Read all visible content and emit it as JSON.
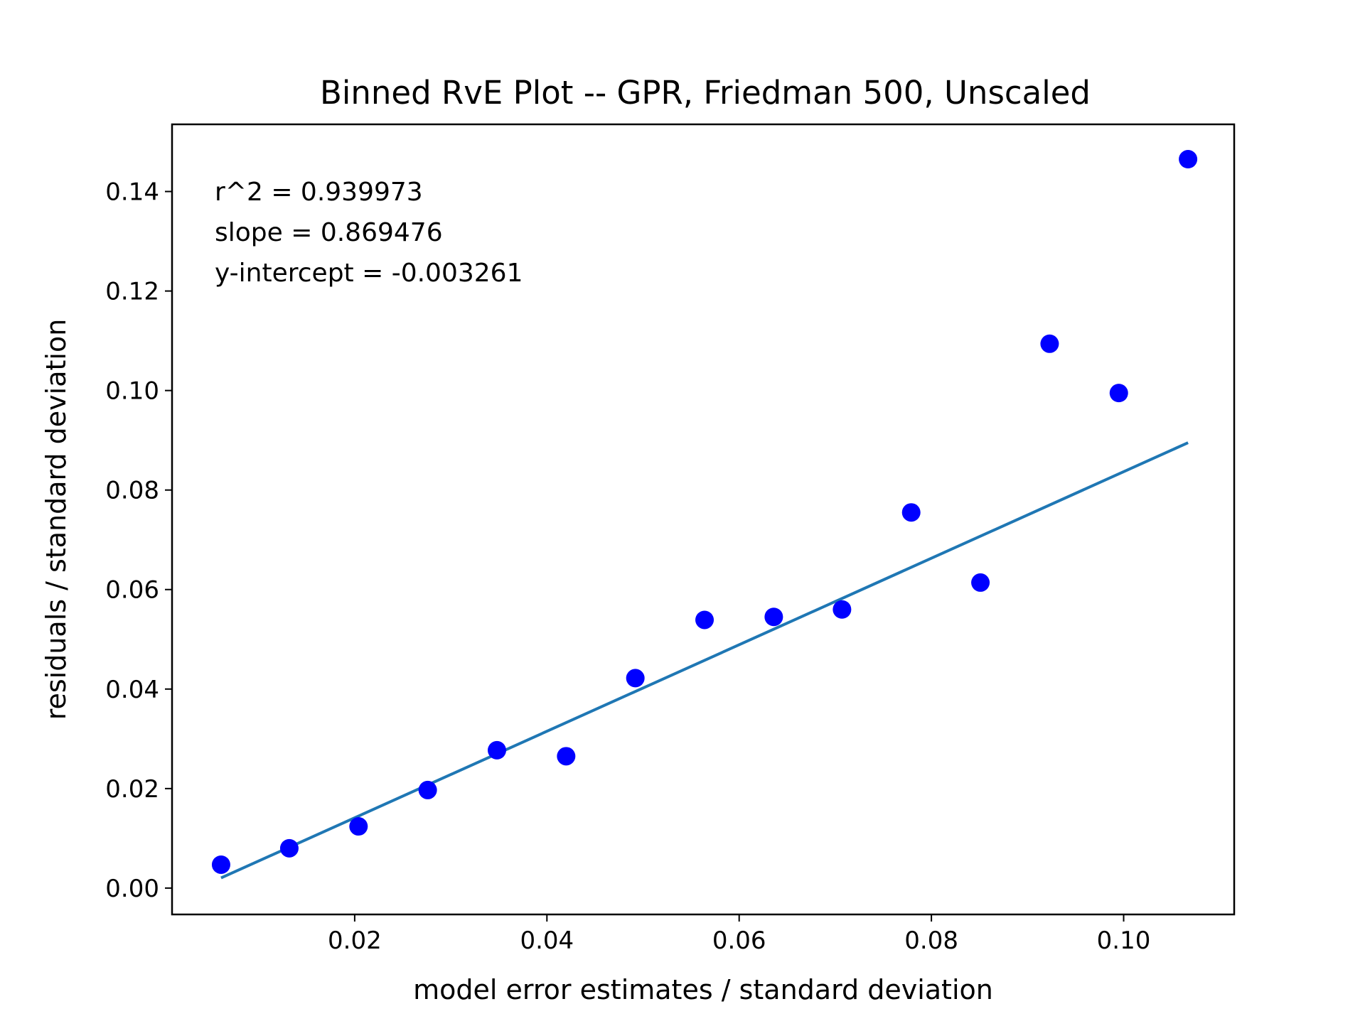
{
  "chart_data": {
    "type": "scatter",
    "title": "Binned RvE Plot -- GPR, Friedman 500, Unscaled",
    "xlabel": "model error estimates / standard deviation",
    "ylabel": "residuals / standard deviation",
    "xlim": [
      0.001,
      0.1115
    ],
    "ylim": [
      -0.0053,
      0.1535
    ],
    "xticks": [
      0.02,
      0.04,
      0.06,
      0.08,
      0.1
    ],
    "xtick_labels": [
      "0.02",
      "0.04",
      "0.06",
      "0.08",
      "0.10"
    ],
    "yticks": [
      0.0,
      0.02,
      0.04,
      0.06,
      0.08,
      0.1,
      0.12,
      0.14
    ],
    "ytick_labels": [
      "0.00",
      "0.02",
      "0.04",
      "0.06",
      "0.08",
      "0.10",
      "0.12",
      "0.14"
    ],
    "grid": false,
    "annotations": [
      "r^2 = 0.939973",
      "slope = 0.869476",
      "y-intercept = -0.003261"
    ],
    "series": [
      {
        "kind": "points",
        "color": "#0000ff",
        "x": [
          0.0061,
          0.0132,
          0.0204,
          0.0276,
          0.0348,
          0.042,
          0.0492,
          0.0564,
          0.0636,
          0.0707,
          0.0779,
          0.0851,
          0.0923,
          0.0995,
          0.1067
        ],
        "y": [
          0.0047,
          0.008,
          0.0124,
          0.0197,
          0.0277,
          0.0265,
          0.0422,
          0.0539,
          0.0545,
          0.056,
          0.0755,
          0.0614,
          0.1094,
          0.0995,
          0.1465
        ]
      },
      {
        "kind": "fit-line",
        "color": "#1f77b4",
        "slope": 0.869476,
        "intercept": -0.003261,
        "x_range": [
          0.0061,
          0.1067
        ]
      }
    ]
  }
}
